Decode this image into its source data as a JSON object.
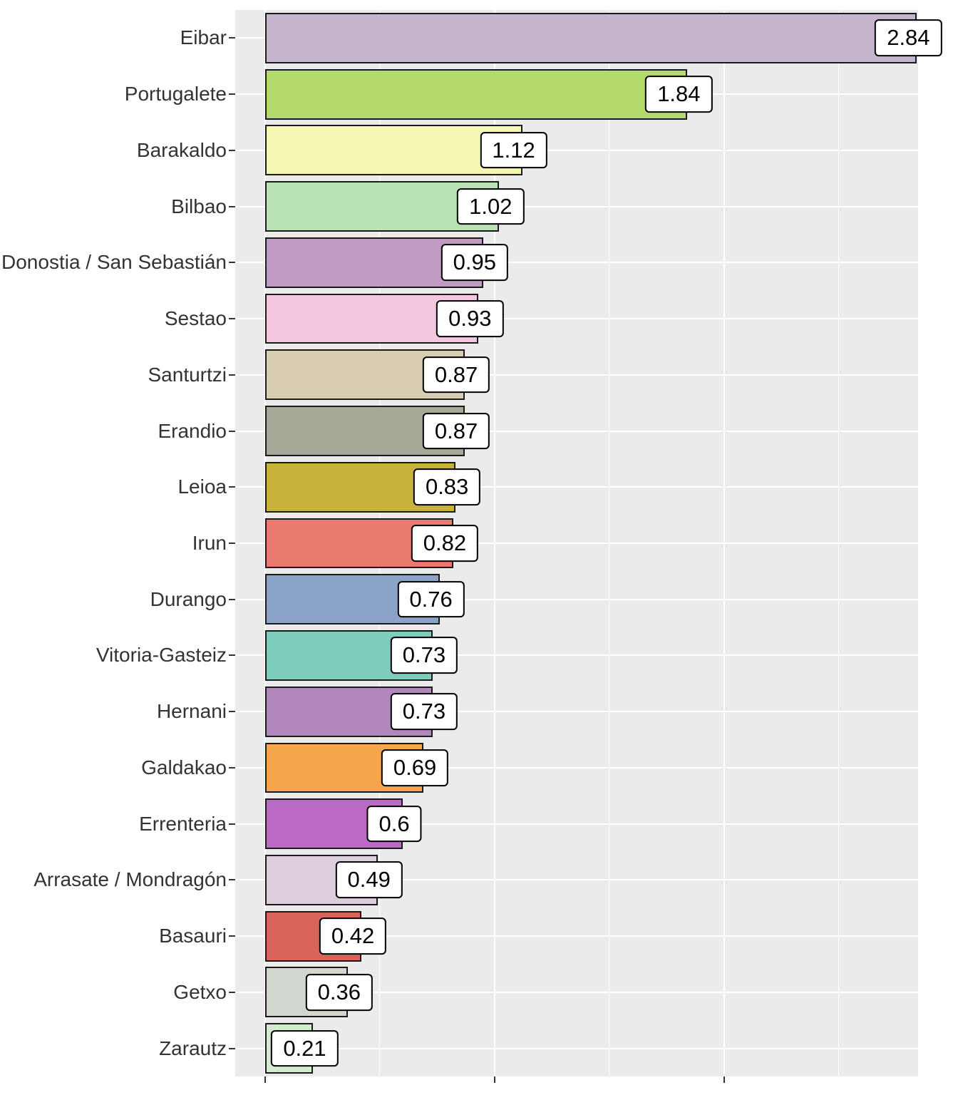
{
  "chart_data": {
    "type": "bar",
    "orientation": "horizontal",
    "title": "",
    "xlabel": "",
    "ylabel": "",
    "categories": [
      "Eibar",
      "Portugalete",
      "Barakaldo",
      "Bilbao",
      "Donostia / San Sebastián",
      "Sestao",
      "Santurtzi",
      "Erandio",
      "Leioa",
      "Irun",
      "Durango",
      "Vitoria-Gasteiz",
      "Hernani",
      "Galdakao",
      "Errenteria",
      "Arrasate / Mondragón",
      "Basauri",
      "Getxo",
      "Zarautz"
    ],
    "values": [
      2.84,
      1.84,
      1.12,
      1.02,
      0.95,
      0.93,
      0.87,
      0.87,
      0.83,
      0.82,
      0.76,
      0.73,
      0.73,
      0.69,
      0.6,
      0.49,
      0.42,
      0.36,
      0.21
    ],
    "value_labels": [
      "2.84",
      "1.84",
      "1.12",
      "1.02",
      "0.95",
      "0.93",
      "0.87",
      "0.87",
      "0.83",
      "0.82",
      "0.76",
      "0.73",
      "0.73",
      "0.69",
      "0.6",
      "0.49",
      "0.42",
      "0.36",
      "0.21"
    ],
    "bar_colors": [
      "#c6b4cd",
      "#b2d96a",
      "#f6f6b4",
      "#b9e3b4",
      "#bf9bc1",
      "#f4c6e0",
      "#d8cdb0",
      "#a8a899",
      "#c9b23c",
      "#e87a6f",
      "#8ba3c7",
      "#7eccbc",
      "#b287bd",
      "#f5a54c",
      "#bb6bc4",
      "#ddcede",
      "#d7655c",
      "#d1d6ce",
      "#d3ebcf"
    ],
    "xlim": [
      -0.13,
      2.845
    ],
    "x_major_ticks": [
      0,
      1,
      2
    ],
    "x_minor_ticks": [
      0.5,
      1.5,
      2.5
    ],
    "x_tick_labels": [],
    "legend": null,
    "grid": true,
    "panel_bg": "#ebebeb",
    "grid_color": "#ffffff",
    "bar_border_color": "#1a1a1a",
    "label_box_bg": "#ffffff",
    "label_box_border": "#000000",
    "label_text_color": "#000000",
    "axis_text_color": "#333333",
    "tick_mark_color": "#333333"
  }
}
